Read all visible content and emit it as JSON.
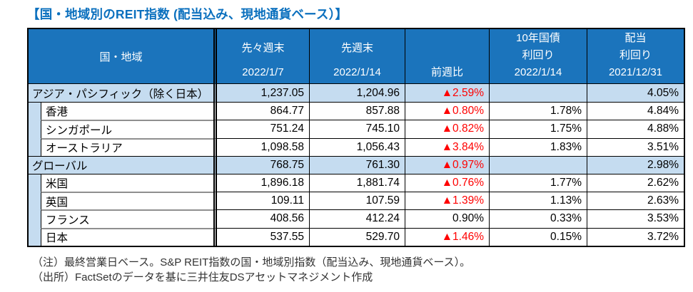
{
  "title": "【国・地域別のREIT指数 (配当込み、現地通貨ベース）】",
  "colors": {
    "header_bg": "#1B74BC",
    "group_row_bg": "#C5DCF0",
    "negative_text": "#FF0000",
    "title_text": "#0B70BE"
  },
  "table": {
    "header": {
      "region": "国・地域",
      "prev2_label": "先々週末",
      "prev2_date": "2022/1/7",
      "prev_label": "先週末",
      "prev_date": "2022/1/14",
      "wow_label": "前週比",
      "bond_label_line1": "10年国債",
      "bond_label_line2": "利回り",
      "bond_date": "2022/1/14",
      "div_label_line1": "配当",
      "div_label_line2": "利回り",
      "div_date": "2021/12/31"
    },
    "rows": [
      {
        "level": "group",
        "name": "アジア・パシフィック（除く日本）",
        "prev2": "1,237.05",
        "prev": "1,204.96",
        "wow": "▲2.59%",
        "bond": "",
        "dividend": "4.05%"
      },
      {
        "level": "sub",
        "name": "香港",
        "prev2": "864.77",
        "prev": "857.88",
        "wow": "▲0.80%",
        "bond": "1.78%",
        "dividend": "4.84%"
      },
      {
        "level": "sub",
        "name": "シンガポール",
        "prev2": "751.24",
        "prev": "745.10",
        "wow": "▲0.82%",
        "bond": "1.75%",
        "dividend": "4.88%"
      },
      {
        "level": "sub",
        "name": "オーストラリア",
        "prev2": "1,098.58",
        "prev": "1,056.43",
        "wow": "▲3.84%",
        "bond": "1.83%",
        "dividend": "3.51%"
      },
      {
        "level": "group",
        "name": "グローバル",
        "prev2": "768.75",
        "prev": "761.30",
        "wow": "▲0.97%",
        "bond": "",
        "dividend": "2.98%"
      },
      {
        "level": "sub",
        "name": "米国",
        "prev2": "1,896.18",
        "prev": "1,881.74",
        "wow": "▲0.76%",
        "bond": "1.77%",
        "dividend": "2.62%"
      },
      {
        "level": "sub",
        "name": "英国",
        "prev2": "109.11",
        "prev": "107.59",
        "wow": "▲1.39%",
        "bond": "1.13%",
        "dividend": "2.63%"
      },
      {
        "level": "sub",
        "name": "フランス",
        "prev2": "408.56",
        "prev": "412.24",
        "wow": "0.90%",
        "bond": "0.33%",
        "dividend": "3.53%"
      },
      {
        "level": "sub",
        "name": "日本",
        "prev2": "537.55",
        "prev": "529.70",
        "wow": "▲1.46%",
        "bond": "0.15%",
        "dividend": "3.72%"
      }
    ]
  },
  "notes": [
    "（注）最終営業日ベース。S&P REIT指数の国・地域別指数（配当込み、現地通貨ベース）。",
    "（出所）FactSetのデータを基に三井住友DSアセットマネジメント作成"
  ]
}
